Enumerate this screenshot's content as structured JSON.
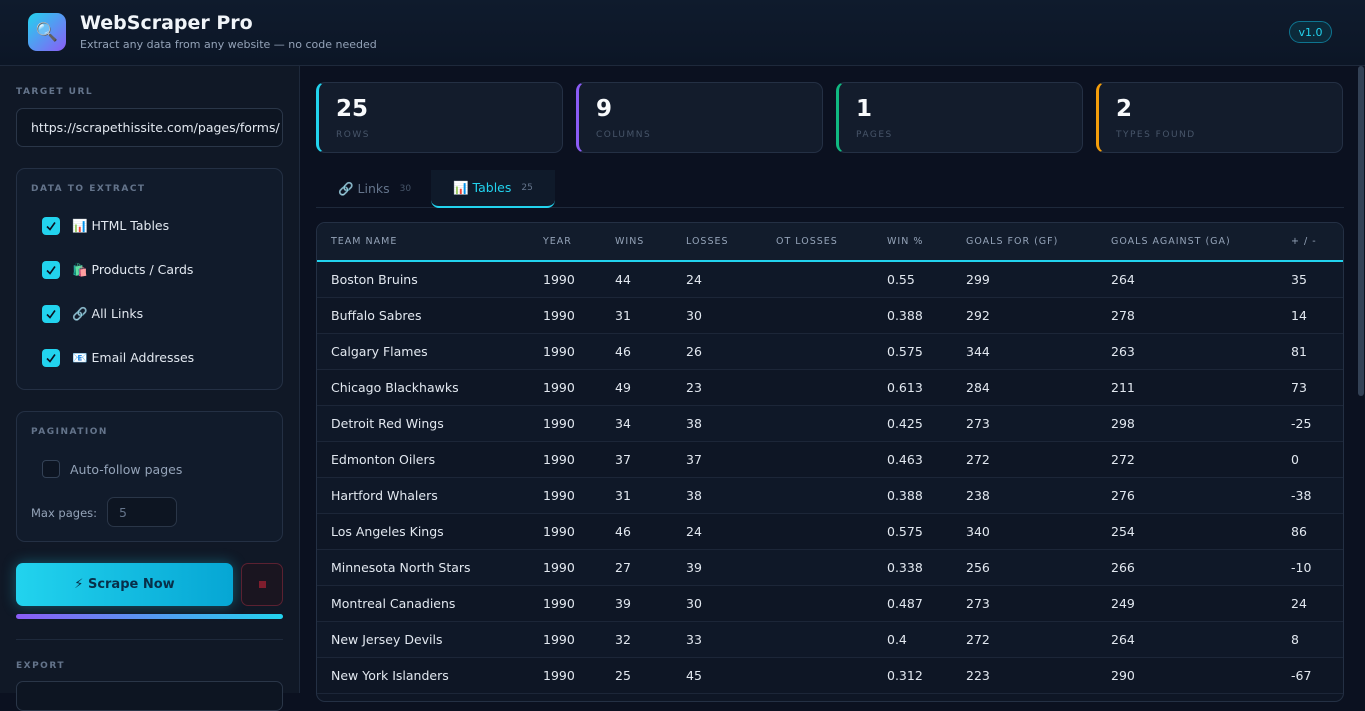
{
  "header": {
    "icon": "🔍",
    "title": "WebScraper Pro",
    "subtitle": "Extract any data from any website — no code needed",
    "version": "v1.0"
  },
  "sidebar": {
    "target_url": {
      "label": "TARGET URL",
      "value": "https://scrapethissite.com/pages/forms/"
    },
    "extract": {
      "label": "DATA TO EXTRACT",
      "options": [
        "📊 HTML Tables",
        "🛍️ Products / Cards",
        "🔗 All Links",
        "📧 Email Addresses"
      ]
    },
    "pagination": {
      "label": "PAGINATION",
      "auto_follow": "Auto-follow pages",
      "max_pages_label": "Max pages:",
      "max_pages": "5"
    },
    "scrape_button": "⚡ Scrape Now",
    "export": {
      "label": "EXPORT"
    }
  },
  "stats": [
    {
      "value": "25",
      "label": "ROWS",
      "color": "#22d3ee"
    },
    {
      "value": "9",
      "label": "COLUMNS",
      "color": "#8b5cf6"
    },
    {
      "value": "1",
      "label": "PAGES",
      "color": "#10b981"
    },
    {
      "value": "2",
      "label": "TYPES FOUND",
      "color": "#f59e0b"
    }
  ],
  "tabs": [
    {
      "label": "🔗 Links",
      "count": "30"
    },
    {
      "label": "📊 Tables",
      "count": "25",
      "active": true
    }
  ],
  "table": {
    "columns": [
      "TEAM NAME",
      "YEAR",
      "WINS",
      "LOSSES",
      "OT LOSSES",
      "WIN %",
      "GOALS FOR (GF)",
      "GOALS AGAINST (GA)",
      "+ / -"
    ],
    "rows": [
      [
        "Boston Bruins",
        "1990",
        "44",
        "24",
        null,
        "0.55",
        "299",
        "264",
        "35"
      ],
      [
        "Buffalo Sabres",
        "1990",
        "31",
        "30",
        null,
        "0.388",
        "292",
        "278",
        "14"
      ],
      [
        "Calgary Flames",
        "1990",
        "46",
        "26",
        null,
        "0.575",
        "344",
        "263",
        "81"
      ],
      [
        "Chicago Blackhawks",
        "1990",
        "49",
        "23",
        null,
        "0.613",
        "284",
        "211",
        "73"
      ],
      [
        "Detroit Red Wings",
        "1990",
        "34",
        "38",
        null,
        "0.425",
        "273",
        "298",
        "-25"
      ],
      [
        "Edmonton Oilers",
        "1990",
        "37",
        "37",
        null,
        "0.463",
        "272",
        "272",
        "0"
      ],
      [
        "Hartford Whalers",
        "1990",
        "31",
        "38",
        null,
        "0.388",
        "238",
        "276",
        "-38"
      ],
      [
        "Los Angeles Kings",
        "1990",
        "46",
        "24",
        null,
        "0.575",
        "340",
        "254",
        "86"
      ],
      [
        "Minnesota North Stars",
        "1990",
        "27",
        "39",
        null,
        "0.338",
        "256",
        "266",
        "-10"
      ],
      [
        "Montreal Canadiens",
        "1990",
        "39",
        "30",
        null,
        "0.487",
        "273",
        "249",
        "24"
      ],
      [
        "New Jersey Devils",
        "1990",
        "32",
        "33",
        null,
        "0.4",
        "272",
        "264",
        "8"
      ],
      [
        "New York Islanders",
        "1990",
        "25",
        "45",
        null,
        "0.312",
        "223",
        "290",
        "-67"
      ]
    ]
  }
}
